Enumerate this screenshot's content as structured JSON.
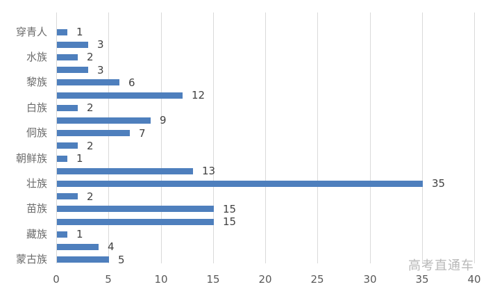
{
  "chart_data": {
    "type": "bar",
    "orientation": "horizontal",
    "title": "",
    "xlabel": "",
    "ylabel": "",
    "xlim": [
      0,
      40
    ],
    "x_ticks": [
      0,
      5,
      10,
      15,
      20,
      25,
      30,
      35,
      40
    ],
    "grid": true,
    "legend": "none",
    "bar_color": "#4e7fbd",
    "gridline_color": "#d9d9d9",
    "value_label_color": "#404040",
    "category_label_color": "#6b6b6b",
    "axis_tick_color": "#595959",
    "rows": [
      {
        "label": "穿青人",
        "value": 1
      },
      {
        "label": "",
        "value": 3
      },
      {
        "label": "水族",
        "value": 2
      },
      {
        "label": "",
        "value": 3
      },
      {
        "label": "黎族",
        "value": 6
      },
      {
        "label": "",
        "value": 12
      },
      {
        "label": "白族",
        "value": 2
      },
      {
        "label": "",
        "value": 9
      },
      {
        "label": "侗族",
        "value": 7
      },
      {
        "label": "",
        "value": 2
      },
      {
        "label": "朝鲜族",
        "value": 1
      },
      {
        "label": "",
        "value": 13
      },
      {
        "label": "壮族",
        "value": 35
      },
      {
        "label": "",
        "value": 2
      },
      {
        "label": "苗族",
        "value": 15
      },
      {
        "label": "",
        "value": 15
      },
      {
        "label": "藏族",
        "value": 1
      },
      {
        "label": "",
        "value": 4
      },
      {
        "label": "蒙古族",
        "value": 5
      }
    ]
  },
  "watermark": {
    "text": "高考直通车",
    "color": "#b8b8b8"
  }
}
